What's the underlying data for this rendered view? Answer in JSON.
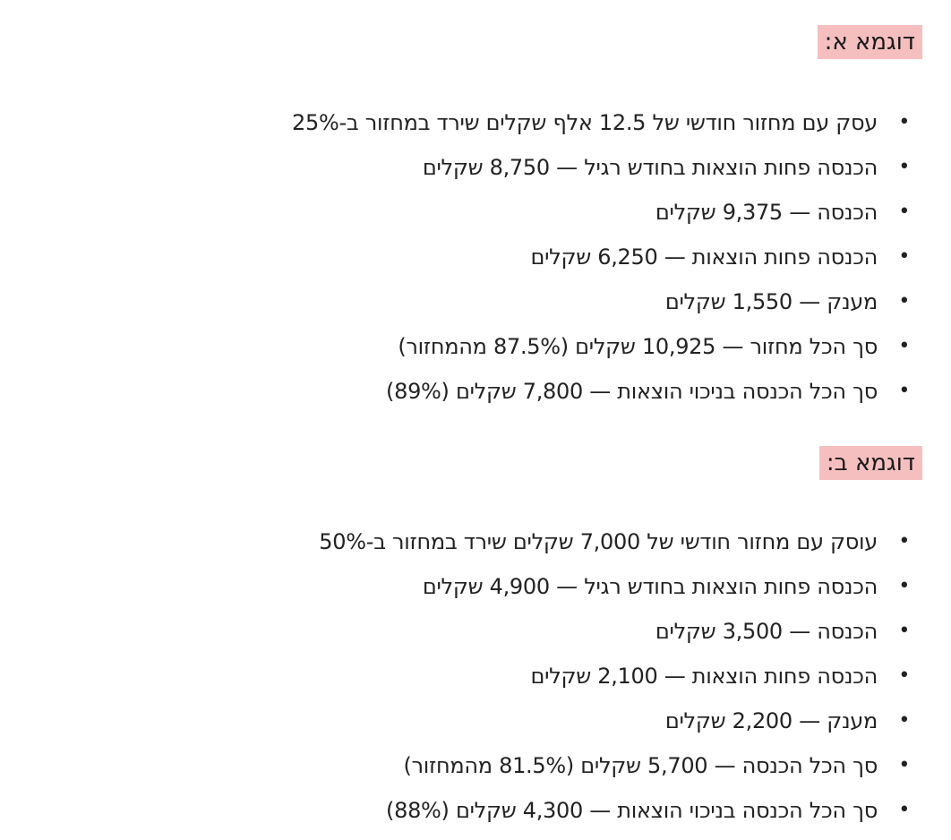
{
  "sections": [
    {
      "heading": "דוגמא א:",
      "items": [
        "עסק עם מחזור חודשי של 12.5 אלף שקלים שירד במחזור ב-25%",
        "הכנסה פחות הוצאות בחודש רגיל — 8,750 שקלים",
        "הכנסה — 9,375 שקלים",
        "הכנסה פחות הוצאות — 6,250 שקלים",
        "מענק — 1,550 שקלים",
        "סך הכל מחזור — 10,925 שקלים (87.5% מהמחזור)",
        "סך הכל הכנסה בניכוי הוצאות — 7,800 שקלים (89%)"
      ]
    },
    {
      "heading": "דוגמא ב:",
      "items": [
        "עוסק עם מחזור חודשי של 7,000 שקלים שירד במחזור ב-50%",
        "הכנסה פחות הוצאות בחודש רגיל — 4,900 שקלים",
        "הכנסה — 3,500 שקלים",
        "הכנסה פחות הוצאות — 2,100 שקלים",
        "מענק — 2,200 שקלים",
        "סך הכל הכנסה — 5,700 שקלים (81.5% מהמחזור)",
        "סך הכל הכנסה בניכוי הוצאות — 4,300 שקלים (88%)"
      ]
    }
  ],
  "colors": {
    "heading_highlight": "#f6bfbf",
    "text": "#222222"
  }
}
